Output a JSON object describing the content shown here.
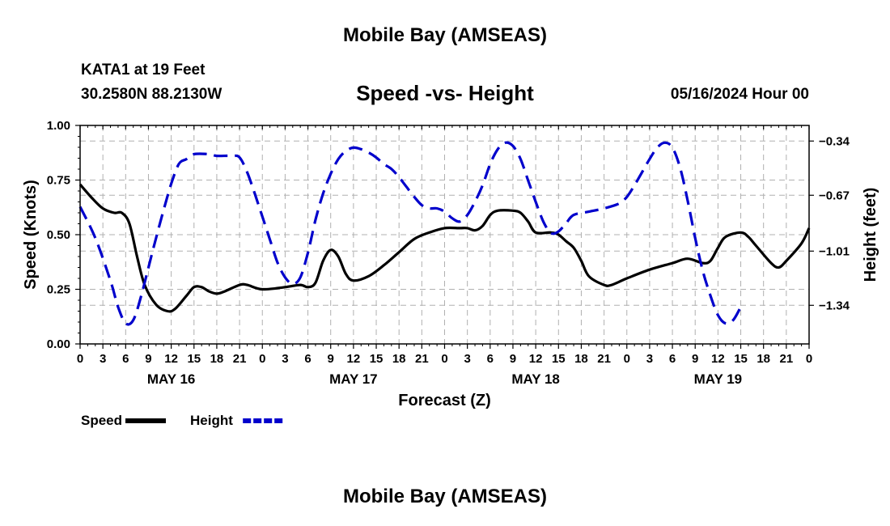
{
  "header": {
    "title": "Mobile Bay (AMSEAS)",
    "station": "KATA1 at 19 Feet",
    "coords": "30.2580N  88.2130W",
    "subtitle": "Speed -vs- Height",
    "datetime": "05/16/2024 Hour 00",
    "bottom_title": "Mobile Bay (AMSEAS)"
  },
  "chart_data": {
    "type": "line",
    "title": "Speed -vs- Height",
    "xlabel": "Forecast (Z)",
    "ylabel_left": "Speed (Knots)",
    "ylabel_right": "Height (feet)",
    "x_range_hours": [
      0,
      96
    ],
    "x_tick_step_hours": 3,
    "x_tick_labels": [
      "0",
      "3",
      "6",
      "9",
      "12",
      "15",
      "18",
      "21",
      "0",
      "3",
      "6",
      "9",
      "12",
      "15",
      "18",
      "21",
      "0",
      "3",
      "6",
      "9",
      "12",
      "15",
      "18",
      "21",
      "0",
      "3",
      "6",
      "9",
      "12",
      "15",
      "18",
      "21",
      "0"
    ],
    "day_labels": [
      {
        "label": "MAY 16",
        "hour": 12
      },
      {
        "label": "MAY 17",
        "hour": 36
      },
      {
        "label": "MAY 18",
        "hour": 60
      },
      {
        "label": "MAY 19",
        "hour": 84
      }
    ],
    "y_left": {
      "range": [
        0,
        1
      ],
      "ticks": [
        0,
        0.25,
        0.5,
        0.75,
        1.0
      ],
      "tick_labels": [
        "0.00",
        "0.25",
        "0.50",
        "0.75",
        "1.00"
      ]
    },
    "y_right": {
      "range": [
        -1.575,
        -0.245
      ],
      "ticks": [
        -1.34,
        -1.01,
        -0.67,
        -0.34
      ],
      "tick_labels": [
        "-1.34",
        "-1.01",
        "-0.67",
        "-0.34"
      ]
    },
    "grid": true,
    "legend_position": "bottom-left",
    "series": [
      {
        "name": "Speed",
        "axis": "left",
        "color": "#000000",
        "dash": "solid",
        "points": [
          [
            0,
            0.73
          ],
          [
            1.5,
            0.67
          ],
          [
            3,
            0.62
          ],
          [
            4.5,
            0.6
          ],
          [
            5.5,
            0.6
          ],
          [
            6.5,
            0.55
          ],
          [
            7.5,
            0.4
          ],
          [
            8.5,
            0.27
          ],
          [
            10,
            0.18
          ],
          [
            11.5,
            0.15
          ],
          [
            12.5,
            0.16
          ],
          [
            14,
            0.22
          ],
          [
            15,
            0.26
          ],
          [
            16,
            0.26
          ],
          [
            17,
            0.24
          ],
          [
            18,
            0.23
          ],
          [
            19,
            0.24
          ],
          [
            21,
            0.27
          ],
          [
            22,
            0.27
          ],
          [
            24,
            0.25
          ],
          [
            27,
            0.26
          ],
          [
            29,
            0.27
          ],
          [
            30,
            0.26
          ],
          [
            31,
            0.28
          ],
          [
            32,
            0.38
          ],
          [
            33,
            0.43
          ],
          [
            34,
            0.4
          ],
          [
            35,
            0.32
          ],
          [
            36,
            0.29
          ],
          [
            38,
            0.31
          ],
          [
            40,
            0.36
          ],
          [
            42,
            0.42
          ],
          [
            44,
            0.48
          ],
          [
            46,
            0.51
          ],
          [
            48,
            0.53
          ],
          [
            50,
            0.53
          ],
          [
            51,
            0.53
          ],
          [
            52,
            0.52
          ],
          [
            53,
            0.54
          ],
          [
            54,
            0.59
          ],
          [
            55,
            0.61
          ],
          [
            57,
            0.61
          ],
          [
            58,
            0.6
          ],
          [
            59,
            0.56
          ],
          [
            60,
            0.51
          ],
          [
            62,
            0.51
          ],
          [
            63,
            0.5
          ],
          [
            64,
            0.47
          ],
          [
            65,
            0.44
          ],
          [
            66,
            0.38
          ],
          [
            67,
            0.31
          ],
          [
            69,
            0.27
          ],
          [
            70,
            0.27
          ],
          [
            72,
            0.3
          ],
          [
            75,
            0.34
          ],
          [
            78,
            0.37
          ],
          [
            80,
            0.39
          ],
          [
            82,
            0.37
          ],
          [
            83,
            0.38
          ],
          [
            84,
            0.44
          ],
          [
            85,
            0.49
          ],
          [
            87,
            0.51
          ],
          [
            88,
            0.49
          ],
          [
            89,
            0.45
          ],
          [
            91,
            0.37
          ],
          [
            92,
            0.35
          ],
          [
            93,
            0.38
          ],
          [
            95,
            0.46
          ],
          [
            96,
            0.53
          ]
        ]
      },
      {
        "name": "Height",
        "axis": "right",
        "color": "#0000cc",
        "dash": "dashed",
        "points": [
          [
            0,
            -0.74
          ],
          [
            2,
            -0.93
          ],
          [
            4,
            -1.19
          ],
          [
            5,
            -1.35
          ],
          [
            6,
            -1.45
          ],
          [
            7,
            -1.43
          ],
          [
            8,
            -1.29
          ],
          [
            9,
            -1.11
          ],
          [
            10,
            -0.93
          ],
          [
            11,
            -0.76
          ],
          [
            12,
            -0.6
          ],
          [
            13,
            -0.48
          ],
          [
            14,
            -0.45
          ],
          [
            15,
            -0.42
          ],
          [
            17,
            -0.42
          ],
          [
            18,
            -0.43
          ],
          [
            20,
            -0.43
          ],
          [
            21,
            -0.44
          ],
          [
            22,
            -0.53
          ],
          [
            23,
            -0.66
          ],
          [
            24,
            -0.8
          ],
          [
            25,
            -0.94
          ],
          [
            26,
            -1.08
          ],
          [
            27,
            -1.17
          ],
          [
            28,
            -1.21
          ],
          [
            29,
            -1.17
          ],
          [
            30,
            -1.02
          ],
          [
            31,
            -0.82
          ],
          [
            32,
            -0.66
          ],
          [
            33,
            -0.54
          ],
          [
            34,
            -0.45
          ],
          [
            35,
            -0.4
          ],
          [
            36,
            -0.38
          ],
          [
            37,
            -0.39
          ],
          [
            38,
            -0.41
          ],
          [
            39,
            -0.44
          ],
          [
            40,
            -0.48
          ],
          [
            41,
            -0.51
          ],
          [
            42,
            -0.56
          ],
          [
            43,
            -0.62
          ],
          [
            44,
            -0.68
          ],
          [
            45,
            -0.73
          ],
          [
            46,
            -0.75
          ],
          [
            47,
            -0.75
          ],
          [
            48,
            -0.77
          ],
          [
            49,
            -0.81
          ],
          [
            50,
            -0.83
          ],
          [
            51,
            -0.79
          ],
          [
            52,
            -0.71
          ],
          [
            53,
            -0.61
          ],
          [
            54,
            -0.48
          ],
          [
            55,
            -0.39
          ],
          [
            56,
            -0.35
          ],
          [
            57,
            -0.37
          ],
          [
            58,
            -0.45
          ],
          [
            59,
            -0.58
          ],
          [
            60,
            -0.71
          ],
          [
            61,
            -0.83
          ],
          [
            62,
            -0.9
          ],
          [
            63,
            -0.89
          ],
          [
            64,
            -0.84
          ],
          [
            65,
            -0.79
          ],
          [
            67,
            -0.77
          ],
          [
            69,
            -0.75
          ],
          [
            71,
            -0.72
          ],
          [
            72,
            -0.68
          ],
          [
            73,
            -0.61
          ],
          [
            74,
            -0.53
          ],
          [
            75,
            -0.45
          ],
          [
            76,
            -0.38
          ],
          [
            77,
            -0.35
          ],
          [
            78,
            -0.38
          ],
          [
            79,
            -0.5
          ],
          [
            80,
            -0.7
          ],
          [
            81,
            -0.93
          ],
          [
            82,
            -1.13
          ],
          [
            83,
            -1.28
          ],
          [
            84,
            -1.4
          ],
          [
            85,
            -1.45
          ],
          [
            86,
            -1.43
          ],
          [
            87,
            -1.35
          ]
        ]
      }
    ]
  }
}
